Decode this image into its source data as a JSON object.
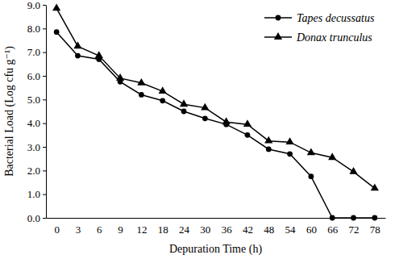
{
  "chart_data": {
    "type": "line",
    "x_label": "Depuration Time (h)",
    "y_label": "Bacterial Load (Log cfu g⁻¹)",
    "categories": [
      "0",
      "3",
      "6",
      "9",
      "12",
      "18",
      "24",
      "30",
      "36",
      "42",
      "48",
      "54",
      "60",
      "66",
      "72",
      "78"
    ],
    "series": [
      {
        "name": "Tapes decussatus",
        "color": "#000000",
        "marker": "circle",
        "line_style": "solid",
        "values": [
          7.85,
          6.85,
          6.7,
          5.75,
          5.2,
          4.95,
          4.5,
          4.2,
          3.95,
          3.5,
          2.9,
          2.7,
          1.75,
          0,
          0,
          0
        ]
      },
      {
        "name": "Donax trunculus",
        "color": "#000000",
        "marker": "triangle",
        "line_style": "solid",
        "values": [
          8.85,
          7.25,
          6.85,
          5.9,
          5.7,
          5.35,
          4.8,
          4.65,
          4.05,
          3.95,
          3.25,
          3.2,
          2.75,
          2.55,
          1.95,
          1.25
        ]
      }
    ],
    "ylim": [
      0,
      9
    ],
    "yticks": [
      {
        "value": 0,
        "label": "0.0"
      },
      {
        "value": 1,
        "label": "1.0"
      },
      {
        "value": 2,
        "label": "2.0"
      },
      {
        "value": 3,
        "label": "3.0"
      },
      {
        "value": 4,
        "label": "4.0"
      },
      {
        "value": 5,
        "label": "5.0"
      },
      {
        "value": 6,
        "label": "6.0"
      },
      {
        "value": 7,
        "label": "7.0"
      },
      {
        "value": 8,
        "label": "8.0"
      },
      {
        "value": 9,
        "label": "9.0"
      }
    ],
    "grid": false,
    "legend": "top-right"
  }
}
